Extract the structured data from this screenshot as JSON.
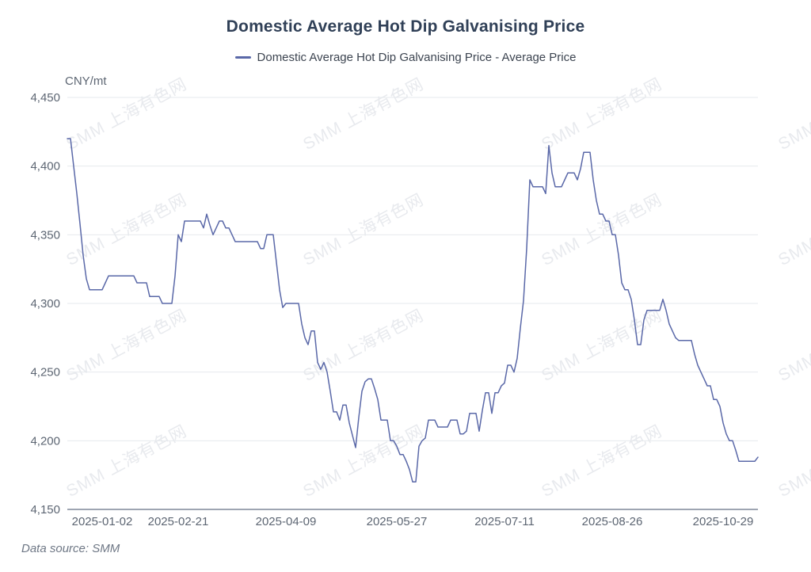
{
  "chart": {
    "title": "Domestic Average Hot Dip Galvanising Price",
    "legend": {
      "label": "Domestic Average Hot Dip Galvanising Price - Average Price",
      "marker_color": "#5a68a8"
    },
    "y_unit": "CNY/mt",
    "source_label": "Data source:  SMM"
  },
  "watermark": {
    "text": "SMM 上海有色网",
    "color": "#e8eaee"
  },
  "chart_data": {
    "type": "line",
    "title": "Domestic Average Hot Dip Galvanising Price",
    "ylabel": "CNY/mt",
    "xlabel": "",
    "ylim": [
      4150,
      4450
    ],
    "grid": true,
    "legend_position": "top",
    "line_color": "#5a68a8",
    "y_ticks": [
      4150,
      4200,
      4250,
      4300,
      4350,
      4400,
      4450
    ],
    "x_ticks": [
      {
        "label": "2025-01-02",
        "index": 11
      },
      {
        "label": "2025-02-21",
        "index": 35
      },
      {
        "label": "2025-04-09",
        "index": 69
      },
      {
        "label": "2025-05-27",
        "index": 104
      },
      {
        "label": "2025-07-11",
        "index": 138
      },
      {
        "label": "2025-08-26",
        "index": 172
      },
      {
        "label": "2025-10-29",
        "index": 207
      }
    ],
    "series": [
      {
        "name": "Domestic Average Hot Dip Galvanising Price - Average Price",
        "values": [
          4420,
          4420,
          4400,
          4380,
          4358,
          4335,
          4318,
          4310,
          4310,
          4310,
          4310,
          4310,
          4315,
          4320,
          4320,
          4320,
          4320,
          4320,
          4320,
          4320,
          4320,
          4320,
          4315,
          4315,
          4315,
          4315,
          4305,
          4305,
          4305,
          4305,
          4300,
          4300,
          4300,
          4300,
          4320,
          4350,
          4345,
          4360,
          4360,
          4360,
          4360,
          4360,
          4360,
          4355,
          4365,
          4357,
          4350,
          4355,
          4360,
          4360,
          4355,
          4355,
          4350,
          4345,
          4345,
          4345,
          4345,
          4345,
          4345,
          4345,
          4345,
          4340,
          4340,
          4350,
          4350,
          4350,
          4330,
          4310,
          4297,
          4300,
          4300,
          4300,
          4300,
          4300,
          4285,
          4275,
          4270,
          4280,
          4280,
          4257,
          4252,
          4257,
          4250,
          4236,
          4221,
          4221,
          4215,
          4226,
          4226,
          4213,
          4204,
          4195,
          4217,
          4236,
          4243,
          4245,
          4245,
          4238,
          4230,
          4215,
          4215,
          4215,
          4200,
          4200,
          4196,
          4190,
          4190,
          4185,
          4179,
          4170,
          4170,
          4196,
          4200,
          4202,
          4215,
          4215,
          4215,
          4210,
          4210,
          4210,
          4210,
          4215,
          4215,
          4215,
          4205,
          4205,
          4207,
          4220,
          4220,
          4220,
          4207,
          4222,
          4235,
          4235,
          4220,
          4235,
          4235,
          4240,
          4242,
          4255,
          4255,
          4250,
          4260,
          4282,
          4302,
          4340,
          4390,
          4385,
          4385,
          4385,
          4385,
          4380,
          4415,
          4395,
          4385,
          4385,
          4385,
          4390,
          4395,
          4395,
          4395,
          4390,
          4398,
          4410,
          4410,
          4410,
          4390,
          4375,
          4365,
          4365,
          4360,
          4360,
          4350,
          4350,
          4335,
          4315,
          4310,
          4310,
          4303,
          4288,
          4270,
          4270,
          4288,
          4295,
          4295,
          4295,
          4295,
          4295,
          4303,
          4295,
          4285,
          4280,
          4275,
          4273,
          4273,
          4273,
          4273,
          4273,
          4263,
          4255,
          4250,
          4245,
          4240,
          4240,
          4230,
          4230,
          4225,
          4213,
          4205,
          4200,
          4200,
          4193,
          4185,
          4185,
          4185,
          4185,
          4185,
          4185,
          4188
        ]
      }
    ]
  }
}
